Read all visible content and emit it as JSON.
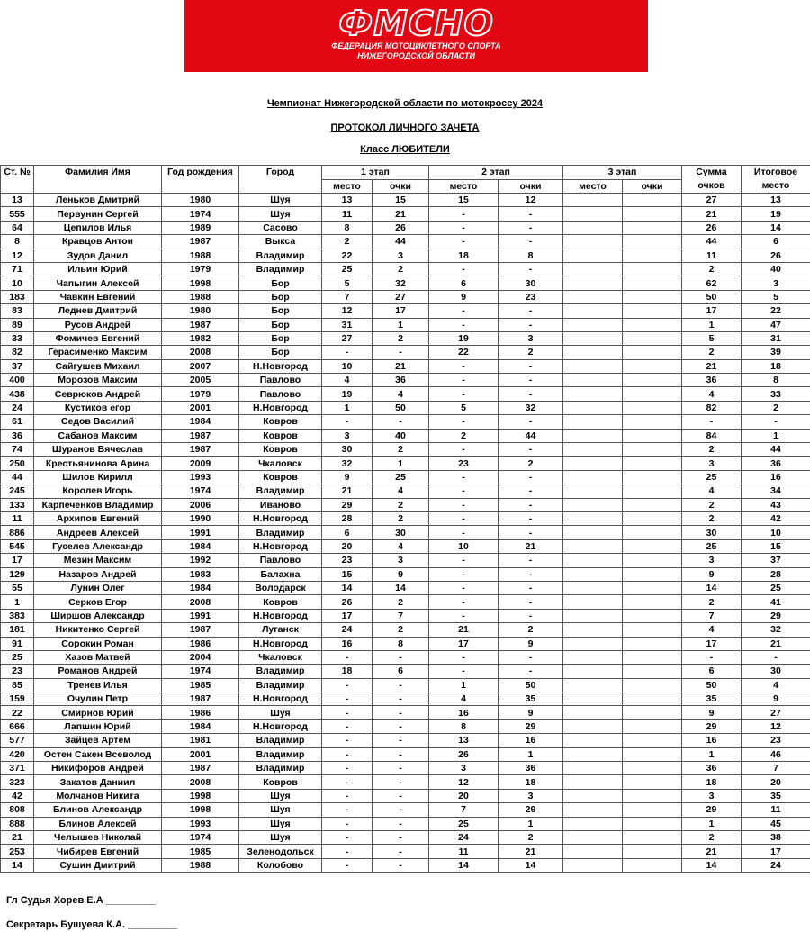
{
  "logo": {
    "text": "ФМСНО",
    "line1": "ФЕДЕРАЦИЯ МОТОЦИКЛЕТНОГО СПОРТА",
    "line2": "НИЖЕГОРОДСКОЙ ОБЛАСТИ",
    "color": "#e30613"
  },
  "title": "Чемпионат Нижегородской области по мотокроссу 2024",
  "subtitle": "ПРОТОКОЛ ЛИЧНОГО ЗАЧЕТА",
  "class_label": "Класс ЛЮБИТЕЛИ",
  "headers": {
    "num": "Ст. №",
    "name": "Фамилия Имя",
    "year": "Год рождения",
    "city": "Город",
    "stage1": "1 этап",
    "stage2": "2 этап",
    "stage3": "3 этап",
    "place": "место",
    "points": "очки",
    "sum": "Сумма очков",
    "final": "Итоговое место"
  },
  "rows": [
    [
      "13",
      "Леньков Дмитрий",
      "1980",
      "Шуя",
      "13",
      "15",
      "15",
      "12",
      "",
      "",
      "27",
      "13"
    ],
    [
      "555",
      "Первунин Сергей",
      "1974",
      "Шуя",
      "11",
      "21",
      "-",
      "-",
      "",
      "",
      "21",
      "19"
    ],
    [
      "64",
      "Цепилов Илья",
      "1989",
      "Сасово",
      "8",
      "26",
      "-",
      "-",
      "",
      "",
      "26",
      "14"
    ],
    [
      "8",
      "Кравцов Антон",
      "1987",
      "Выкса",
      "2",
      "44",
      "-",
      "-",
      "",
      "",
      "44",
      "6"
    ],
    [
      "12",
      "Зудов Данил",
      "1988",
      "Владимир",
      "22",
      "3",
      "18",
      "8",
      "",
      "",
      "11",
      "26"
    ],
    [
      "71",
      "Ильин Юрий",
      "1979",
      "Владимир",
      "25",
      "2",
      "-",
      "-",
      "",
      "",
      "2",
      "40"
    ],
    [
      "10",
      "Чапыгин Алексей",
      "1998",
      "Бор",
      "5",
      "32",
      "6",
      "30",
      "",
      "",
      "62",
      "3"
    ],
    [
      "183",
      "Чавкин Евгений",
      "1988",
      "Бор",
      "7",
      "27",
      "9",
      "23",
      "",
      "",
      "50",
      "5"
    ],
    [
      "83",
      "Леднев Дмитрий",
      "1980",
      "Бор",
      "12",
      "17",
      "-",
      "-",
      "",
      "",
      "17",
      "22"
    ],
    [
      "89",
      "Русов Андрей",
      "1987",
      "Бор",
      "31",
      "1",
      "-",
      "-",
      "",
      "",
      "1",
      "47"
    ],
    [
      "33",
      "Фомичев Евгений",
      "1982",
      "Бор",
      "27",
      "2",
      "19",
      "3",
      "",
      "",
      "5",
      "31"
    ],
    [
      "82",
      "Герасименко Максим",
      "2008",
      "Бор",
      "-",
      "-",
      "22",
      "2",
      "",
      "",
      "2",
      "39"
    ],
    [
      "37",
      "Сайгушев Михаил",
      "2007",
      "Н.Новгород",
      "10",
      "21",
      "-",
      "-",
      "",
      "",
      "21",
      "18"
    ],
    [
      "400",
      "Морозов Максим",
      "2005",
      "Павлово",
      "4",
      "36",
      "-",
      "-",
      "",
      "",
      "36",
      "8"
    ],
    [
      "438",
      "Севрюков Андрей",
      "1979",
      "Павлово",
      "19",
      "4",
      "-",
      "-",
      "",
      "",
      "4",
      "33"
    ],
    [
      "24",
      "Кустиков егор",
      "2001",
      "Н.Новгород",
      "1",
      "50",
      "5",
      "32",
      "",
      "",
      "82",
      "2"
    ],
    [
      "61",
      "Седов Василий",
      "1984",
      "Ковров",
      "-",
      "-",
      "-",
      "-",
      "",
      "",
      "-",
      "-"
    ],
    [
      "36",
      "Сабанов Максим",
      "1987",
      "Ковров",
      "3",
      "40",
      "2",
      "44",
      "",
      "",
      "84",
      "1"
    ],
    [
      "74",
      "Шуранов Вячеслав",
      "1987",
      "Ковров",
      "30",
      "2",
      "-",
      "-",
      "",
      "",
      "2",
      "44"
    ],
    [
      "250",
      "Крестьянинова Арина",
      "2009",
      "Чкаловск",
      "32",
      "1",
      "23",
      "2",
      "",
      "",
      "3",
      "36"
    ],
    [
      "44",
      "Шилов Кирилл",
      "1993",
      "Ковров",
      "9",
      "25",
      "-",
      "-",
      "",
      "",
      "25",
      "16"
    ],
    [
      "245",
      "Королев Игорь",
      "1974",
      "Владимир",
      "21",
      "4",
      "-",
      "-",
      "",
      "",
      "4",
      "34"
    ],
    [
      "133",
      "Карпеченков Владимир",
      "2006",
      "Иваново",
      "29",
      "2",
      "-",
      "-",
      "",
      "",
      "2",
      "43"
    ],
    [
      "11",
      "Архипов Евгений",
      "1990",
      "Н.Новгород",
      "28",
      "2",
      "-",
      "-",
      "",
      "",
      "2",
      "42"
    ],
    [
      "886",
      "Андреев Алексей",
      "1991",
      "Владимир",
      "6",
      "30",
      "-",
      "-",
      "",
      "",
      "30",
      "10"
    ],
    [
      "545",
      "Гуселев Александр",
      "1984",
      "Н.Новгород",
      "20",
      "4",
      "10",
      "21",
      "",
      "",
      "25",
      "15"
    ],
    [
      "17",
      "Мезин Максим",
      "1992",
      "Павлово",
      "23",
      "3",
      "-",
      "-",
      "",
      "",
      "3",
      "37"
    ],
    [
      "129",
      "Назаров Андрей",
      "1983",
      "Балахна",
      "15",
      "9",
      "-",
      "-",
      "",
      "",
      "9",
      "28"
    ],
    [
      "55",
      "Лунин Олег",
      "1984",
      "Володарск",
      "14",
      "14",
      "-",
      "-",
      "",
      "",
      "14",
      "25"
    ],
    [
      "1",
      "Серков Егор",
      "2008",
      "Ковров",
      "26",
      "2",
      "-",
      "-",
      "",
      "",
      "2",
      "41"
    ],
    [
      "383",
      "Ширшов Александр",
      "1991",
      "Н.Новгород",
      "17",
      "7",
      "-",
      "-",
      "",
      "",
      "7",
      "29"
    ],
    [
      "181",
      "Никитенко Сергей",
      "1987",
      "Луганск",
      "24",
      "2",
      "21",
      "2",
      "",
      "",
      "4",
      "32"
    ],
    [
      "91",
      "Сорокин Роман",
      "1986",
      "Н.Новгород",
      "16",
      "8",
      "17",
      "9",
      "",
      "",
      "17",
      "21"
    ],
    [
      "25",
      "Хазов Матвей",
      "2004",
      "Чкаловск",
      "-",
      "-",
      "-",
      "-",
      "",
      "",
      "-",
      "-"
    ],
    [
      "23",
      "Романов Андрей",
      "1974",
      "Владимир",
      "18",
      "6",
      "-",
      "-",
      "",
      "",
      "6",
      "30"
    ],
    [
      "85",
      "Тренев Илья",
      "1985",
      "Владимир",
      "-",
      "-",
      "1",
      "50",
      "",
      "",
      "50",
      "4"
    ],
    [
      "159",
      "Очулин Петр",
      "1987",
      "Н.Новгород",
      "-",
      "-",
      "4",
      "35",
      "",
      "",
      "35",
      "9"
    ],
    [
      "22",
      "Смирнов Юрий",
      "1986",
      "Шуя",
      "-",
      "-",
      "16",
      "9",
      "",
      "",
      "9",
      "27"
    ],
    [
      "666",
      "Лапшин Юрий",
      "1984",
      "Н.Новгород",
      "-",
      "-",
      "8",
      "29",
      "",
      "",
      "29",
      "12"
    ],
    [
      "577",
      "Зайцев Артем",
      "1981",
      "Владимир",
      "-",
      "-",
      "13",
      "16",
      "",
      "",
      "16",
      "23"
    ],
    [
      "420",
      "Остен Сакен Всеволод",
      "2001",
      "Владимир",
      "-",
      "-",
      "26",
      "1",
      "",
      "",
      "1",
      "46"
    ],
    [
      "371",
      "Никифоров Андрей",
      "1987",
      "Владимир",
      "-",
      "-",
      "3",
      "36",
      "",
      "",
      "36",
      "7"
    ],
    [
      "323",
      "Закатов Даниил",
      "2008",
      "Ковров",
      "-",
      "-",
      "12",
      "18",
      "",
      "",
      "18",
      "20"
    ],
    [
      "42",
      "Молчанов Никита",
      "1998",
      "Шуя",
      "-",
      "-",
      "20",
      "3",
      "",
      "",
      "3",
      "35"
    ],
    [
      "808",
      "Блинов Александр",
      "1998",
      "Шуя",
      "-",
      "-",
      "7",
      "29",
      "",
      "",
      "29",
      "11"
    ],
    [
      "888",
      "Блинов Алексей",
      "1993",
      "Шуя",
      "-",
      "-",
      "25",
      "1",
      "",
      "",
      "1",
      "45"
    ],
    [
      "21",
      "Челышев Николай",
      "1974",
      "Шуя",
      "-",
      "-",
      "24",
      "2",
      "",
      "",
      "2",
      "38"
    ],
    [
      "253",
      "Чибирев Евгений",
      "1985",
      "Зеленодольск",
      "-",
      "-",
      "11",
      "21",
      "",
      "",
      "21",
      "17"
    ],
    [
      "14",
      "Сушин Дмитрий",
      "1988",
      "Колобово",
      "-",
      "-",
      "14",
      "14",
      "",
      "",
      "14",
      "24"
    ]
  ],
  "signatures": [
    "Гл Судья Хорев Е.А  _________",
    "Секретарь Бушуева К.А.  _________"
  ]
}
